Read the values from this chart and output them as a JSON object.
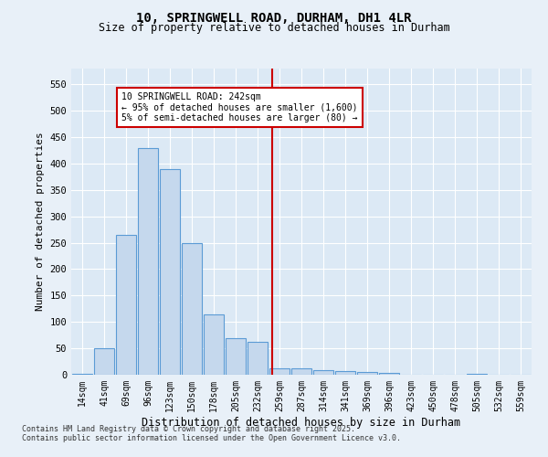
{
  "title1": "10, SPRINGWELL ROAD, DURHAM, DH1 4LR",
  "title2": "Size of property relative to detached houses in Durham",
  "xlabel": "Distribution of detached houses by size in Durham",
  "ylabel": "Number of detached properties",
  "categories": [
    "14sqm",
    "41sqm",
    "69sqm",
    "96sqm",
    "123sqm",
    "150sqm",
    "178sqm",
    "205sqm",
    "232sqm",
    "259sqm",
    "287sqm",
    "314sqm",
    "341sqm",
    "369sqm",
    "396sqm",
    "423sqm",
    "450sqm",
    "478sqm",
    "505sqm",
    "532sqm",
    "559sqm"
  ],
  "values": [
    2,
    50,
    265,
    430,
    390,
    250,
    115,
    70,
    63,
    12,
    12,
    8,
    7,
    6,
    4,
    0,
    0,
    0,
    1,
    0,
    0
  ],
  "bar_color": "#c5d8ed",
  "bar_edge_color": "#5b9bd5",
  "bar_edge_width": 0.8,
  "vline_x": 8.65,
  "vline_color": "#cc0000",
  "annotation_text": "10 SPRINGWELL ROAD: 242sqm\n← 95% of detached houses are smaller (1,600)\n5% of semi-detached houses are larger (80) →",
  "annotation_box_color": "#cc0000",
  "annotation_text_color": "#000000",
  "ylim": [
    0,
    580
  ],
  "yticks": [
    0,
    50,
    100,
    150,
    200,
    250,
    300,
    350,
    400,
    450,
    500,
    550
  ],
  "background_color": "#dce9f5",
  "fig_background_color": "#e8f0f8",
  "grid_color": "#ffffff",
  "footer_line1": "Contains HM Land Registry data © Crown copyright and database right 2025.",
  "footer_line2": "Contains public sector information licensed under the Open Government Licence v3.0."
}
